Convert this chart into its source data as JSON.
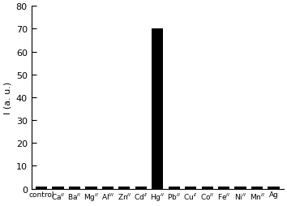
{
  "labels": [
    "control",
    "Ca$^{II}$",
    "Ba$^{II}$",
    "Mg$^{II}$",
    "Al$^{III}$",
    "Zn$^{II}$",
    "Cd$^{II}$",
    "Hg$^{II}$",
    "Pb$^{II}$",
    "Cu$^{II}$",
    "Co$^{II}$",
    "Fe$^{II}$",
    "Ni$^{II}$",
    "Mn$^{II}$",
    "Ag"
  ],
  "values": [
    1,
    1,
    1,
    1,
    1,
    1,
    1,
    70,
    1,
    1,
    1,
    1,
    1,
    1,
    1
  ],
  "bar_color": "#000000",
  "ylabel": "I (a. u.)",
  "ylim": [
    0,
    80
  ],
  "yticks": [
    0,
    10,
    20,
    30,
    40,
    50,
    60,
    70,
    80
  ],
  "bar_width": 0.7,
  "figsize": [
    3.54,
    2.55
  ],
  "dpi": 100,
  "xlabel_fontsize": 6.5,
  "ylabel_fontsize": 8,
  "ytick_fontsize": 8
}
